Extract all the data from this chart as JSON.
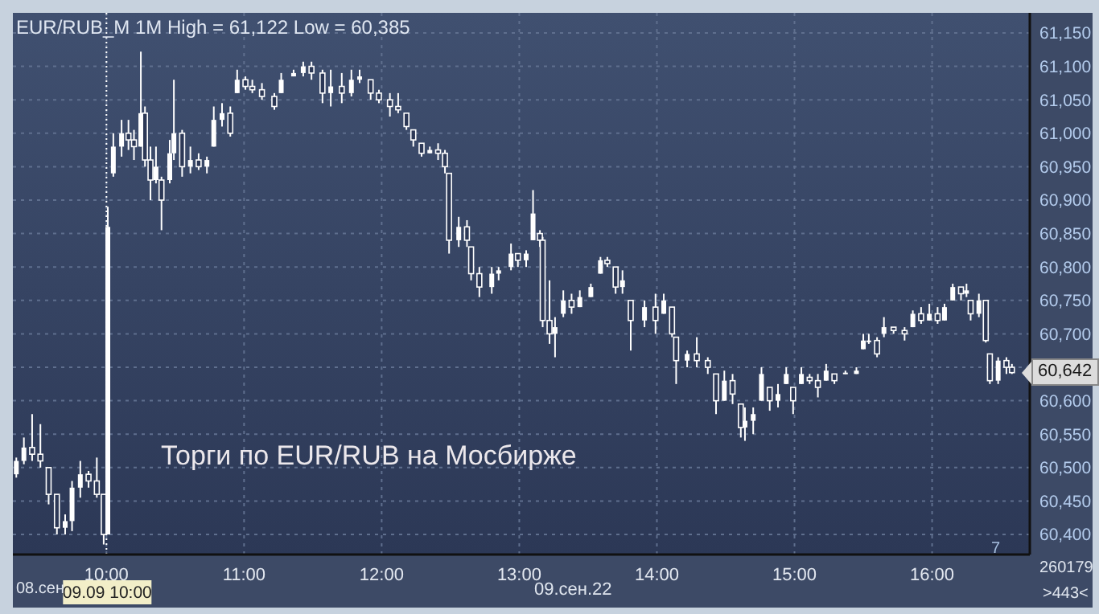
{
  "chart_data": {
    "type": "candlestick",
    "title": "EUR/RUB_M 1M High = 61,122 Low = 60,385",
    "color": "#ffffff",
    "x": [
      9.345,
      9.4,
      9.46,
      9.52,
      9.58,
      9.64,
      9.7,
      9.75,
      9.81,
      9.87,
      9.93,
      9.98,
      10.01,
      10.05,
      10.11,
      10.16,
      10.2,
      10.25,
      10.28,
      10.32,
      10.36,
      10.4,
      10.46,
      10.49,
      10.55,
      10.61,
      10.67,
      10.73,
      10.78,
      10.84,
      10.9,
      10.95,
      11.01,
      11.06,
      11.13,
      11.22,
      11.27,
      11.36,
      11.43,
      11.49,
      11.57,
      11.63,
      11.71,
      11.78,
      11.84,
      11.92,
      11.98,
      12.06,
      12.12,
      12.18,
      12.23,
      12.29,
      12.35,
      12.41,
      12.46,
      12.49,
      12.56,
      12.62,
      12.65,
      12.71,
      12.8,
      12.85,
      12.94,
      12.99,
      13.05,
      13.1,
      13.15,
      13.17,
      13.22,
      13.26,
      13.32,
      13.38,
      13.44,
      13.52,
      13.59,
      13.64,
      13.7,
      13.75,
      13.81,
      13.91,
      13.99,
      14.05,
      14.11,
      14.14,
      14.22,
      14.29,
      14.37,
      14.43,
      14.49,
      14.55,
      14.61,
      14.64,
      14.7,
      14.76,
      14.82,
      14.88,
      14.94,
      14.99,
      15.05,
      15.11,
      15.17,
      15.23,
      15.29,
      15.37,
      15.45,
      15.5,
      15.54,
      15.6,
      15.65,
      15.72,
      15.8,
      15.86,
      15.92,
      15.98,
      16.04,
      16.09,
      16.15,
      16.21,
      16.25,
      16.28,
      16.34,
      16.39,
      16.42,
      16.48,
      16.54,
      16.58
    ],
    "ohlc": [
      [
        60490,
        60515,
        60485,
        60510
      ],
      [
        60510,
        60545,
        60505,
        60530
      ],
      [
        60530,
        60580,
        60510,
        60520
      ],
      [
        60520,
        60565,
        60500,
        60510
      ],
      [
        60500,
        60500,
        60445,
        60460
      ],
      [
        60460,
        60460,
        60400,
        60410
      ],
      [
        60410,
        60430,
        60400,
        60420
      ],
      [
        60420,
        60480,
        60405,
        60470
      ],
      [
        60470,
        60510,
        60455,
        60490
      ],
      [
        60490,
        60495,
        60470,
        60480
      ],
      [
        60480,
        60515,
        60455,
        60460
      ],
      [
        60460,
        60460,
        60385,
        60400
      ],
      [
        60400,
        60890,
        60400,
        60860
      ],
      [
        60940,
        61000,
        60935,
        60980
      ],
      [
        60980,
        61020,
        60965,
        61000
      ],
      [
        61000,
        61020,
        60975,
        60990
      ],
      [
        60990,
        61005,
        60960,
        60980
      ],
      [
        60980,
        61122,
        60980,
        61030
      ],
      [
        61030,
        61040,
        60950,
        60960
      ],
      [
        60960,
        60980,
        60900,
        60930
      ],
      [
        60930,
        60980,
        60925,
        60950
      ],
      [
        60930,
        60935,
        60855,
        60900
      ],
      [
        60930,
        60990,
        60925,
        60970
      ],
      [
        60970,
        61080,
        60960,
        61000
      ],
      [
        61000,
        61005,
        60935,
        60950
      ],
      [
        60950,
        60980,
        60940,
        60960
      ],
      [
        60960,
        60970,
        60945,
        60950
      ],
      [
        60950,
        60965,
        60940,
        60960
      ],
      [
        60980,
        61040,
        60980,
        61020
      ],
      [
        61020,
        61045,
        61010,
        61030
      ],
      [
        61030,
        61040,
        60995,
        61000
      ],
      [
        61060,
        61095,
        61060,
        61080
      ],
      [
        61080,
        61085,
        61065,
        61070
      ],
      [
        61070,
        61080,
        61060,
        61065
      ],
      [
        61065,
        61075,
        61050,
        61055
      ],
      [
        61055,
        61060,
        61035,
        61040
      ],
      [
        61060,
        61090,
        61060,
        61080
      ],
      [
        61085,
        61095,
        61085,
        61090
      ],
      [
        61090,
        61107,
        61085,
        61100
      ],
      [
        61100,
        61107,
        61080,
        61090
      ],
      [
        61090,
        61095,
        61045,
        61060
      ],
      [
        61060,
        61095,
        61040,
        61070
      ],
      [
        61070,
        61090,
        61045,
        61060
      ],
      [
        61060,
        61095,
        61055,
        61080
      ],
      [
        61080,
        61095,
        61075,
        61085
      ],
      [
        61080,
        61080,
        61050,
        61060
      ],
      [
        61060,
        61065,
        61045,
        61050
      ],
      [
        61050,
        61060,
        61025,
        61040
      ],
      [
        61040,
        61060,
        61030,
        61035
      ],
      [
        61030,
        61030,
        61005,
        61010
      ],
      [
        61005,
        61005,
        60980,
        60990
      ],
      [
        60985,
        60985,
        60965,
        60970
      ],
      [
        60970,
        60980,
        60970,
        60975
      ],
      [
        60975,
        60985,
        60960,
        60970
      ],
      [
        60970,
        60975,
        60940,
        60950
      ],
      [
        60940,
        60940,
        60820,
        60840
      ],
      [
        60840,
        60875,
        60830,
        60860
      ],
      [
        60860,
        60870,
        60830,
        60840
      ],
      [
        60830,
        60830,
        60780,
        60790
      ],
      [
        60790,
        60800,
        60755,
        60770
      ],
      [
        60770,
        60800,
        60760,
        60790
      ],
      [
        60790,
        60800,
        60780,
        60795
      ],
      [
        60800,
        60835,
        60795,
        60820
      ],
      [
        60820,
        60820,
        60800,
        60810
      ],
      [
        60810,
        60825,
        60800,
        60820
      ],
      [
        60840,
        60915,
        60840,
        60880
      ],
      [
        60850,
        60855,
        60830,
        60840
      ],
      [
        60840,
        60845,
        60710,
        60720
      ],
      [
        60720,
        60780,
        60685,
        60700
      ],
      [
        60700,
        60725,
        60665,
        60710
      ],
      [
        60730,
        60765,
        60725,
        60750
      ],
      [
        60750,
        60760,
        60730,
        60740
      ],
      [
        60740,
        60765,
        60740,
        60755
      ],
      [
        60755,
        60775,
        60755,
        60770
      ],
      [
        60790,
        60815,
        60790,
        60810
      ],
      [
        60810,
        60815,
        60800,
        60805
      ],
      [
        60800,
        60800,
        60760,
        60770
      ],
      [
        60770,
        60795,
        60760,
        60780
      ],
      [
        60750,
        60750,
        60675,
        60720
      ],
      [
        60720,
        60750,
        60710,
        60740
      ],
      [
        60740,
        60760,
        60700,
        60720
      ],
      [
        60730,
        60760,
        60730,
        60750
      ],
      [
        60740,
        60740,
        60695,
        60700
      ],
      [
        60695,
        60695,
        60625,
        60660
      ],
      [
        60660,
        60675,
        60650,
        60670
      ],
      [
        60670,
        60695,
        60650,
        60660
      ],
      [
        60660,
        60665,
        60640,
        60650
      ],
      [
        60640,
        60640,
        60580,
        60600
      ],
      [
        60600,
        60645,
        60600,
        60630
      ],
      [
        60630,
        60640,
        60595,
        60610
      ],
      [
        60595,
        60595,
        60545,
        60560
      ],
      [
        60560,
        60590,
        60540,
        60570
      ],
      [
        60570,
        60590,
        60550,
        60580
      ],
      [
        60600,
        60650,
        60600,
        60640
      ],
      [
        60620,
        60620,
        60585,
        60600
      ],
      [
        60600,
        60625,
        60590,
        60610
      ],
      [
        60625,
        60650,
        60625,
        60640
      ],
      [
        60620,
        60620,
        60580,
        60600
      ],
      [
        60625,
        60650,
        60625,
        60640
      ],
      [
        60635,
        60640,
        60625,
        60630
      ],
      [
        60630,
        60640,
        60605,
        60620
      ],
      [
        60630,
        60655,
        60630,
        60645
      ],
      [
        60640,
        60640,
        60625,
        60630
      ],
      [
        60640,
        60645,
        60640,
        60642
      ],
      [
        60640,
        60650,
        60640,
        60645
      ],
      [
        60677,
        60700,
        60677,
        60690
      ],
      [
        60690,
        60700,
        60685,
        60690
      ],
      [
        60690,
        60695,
        60665,
        60670
      ],
      [
        60700,
        60725,
        60695,
        60710
      ],
      [
        60710,
        60710,
        60700,
        60705
      ],
      [
        60705,
        60710,
        60690,
        60700
      ],
      [
        60710,
        60735,
        60710,
        60730
      ],
      [
        60730,
        60740,
        60715,
        60720
      ],
      [
        60720,
        60745,
        60720,
        60730
      ],
      [
        60730,
        60740,
        60715,
        60720
      ],
      [
        60720,
        60745,
        60720,
        60740
      ],
      [
        60750,
        60775,
        60750,
        60770
      ],
      [
        60770,
        60770,
        60750,
        60760
      ],
      [
        60760,
        60775,
        60755,
        60765
      ],
      [
        60750,
        60750,
        60720,
        60730
      ],
      [
        60730,
        60760,
        60725,
        60750
      ],
      [
        60750,
        60750,
        60687,
        60690
      ],
      [
        60670,
        60670,
        60625,
        60630
      ],
      [
        60630,
        60665,
        60625,
        60660
      ],
      [
        60660,
        60665,
        60640,
        60650
      ],
      [
        60650,
        60655,
        60640,
        60642
      ]
    ],
    "xlim": [
      9.32,
      16.71
    ],
    "xticks": [
      {
        "value": 10,
        "label": "10:00"
      },
      {
        "value": 11,
        "label": "11:00"
      },
      {
        "value": 12,
        "label": "12:00"
      },
      {
        "value": 13,
        "label": "13:00"
      },
      {
        "value": 14,
        "label": "14:00"
      },
      {
        "value": 15,
        "label": "15:00"
      },
      {
        "value": 16,
        "label": "16:00"
      }
    ],
    "ylim": [
      60370,
      61180
    ],
    "yticks": [
      {
        "value": 60400,
        "label": "60,400"
      },
      {
        "value": 60450,
        "label": "60,450"
      },
      {
        "value": 60500,
        "label": "60,500"
      },
      {
        "value": 60550,
        "label": "60,550"
      },
      {
        "value": 60600,
        "label": "60,600"
      },
      {
        "value": 60650,
        "label": null
      },
      {
        "value": 60700,
        "label": "60,700"
      },
      {
        "value": 60750,
        "label": "60,750"
      },
      {
        "value": 60800,
        "label": "60,800"
      },
      {
        "value": 60850,
        "label": "60,850"
      },
      {
        "value": 60900,
        "label": "60,900"
      },
      {
        "value": 60950,
        "label": "60,950"
      },
      {
        "value": 61000,
        "label": "61,000"
      },
      {
        "value": 61050,
        "label": "61,050"
      },
      {
        "value": 61100,
        "label": "61,100"
      },
      {
        "value": 61150,
        "label": "61,150"
      }
    ],
    "grid": true,
    "ref_lines": [
      {
        "axis": "x",
        "value": 10,
        "label": "09.09 10:00",
        "color": "#ffffff",
        "line_style": "dotted"
      }
    ],
    "annotations": [
      "Торги по EUR/RUB на Мосбирже",
      "08.сен",
      "09.сен.22",
      "260179",
      ">443<",
      "7",
      {
        "text": "60,642",
        "y": 60642
      }
    ]
  }
}
